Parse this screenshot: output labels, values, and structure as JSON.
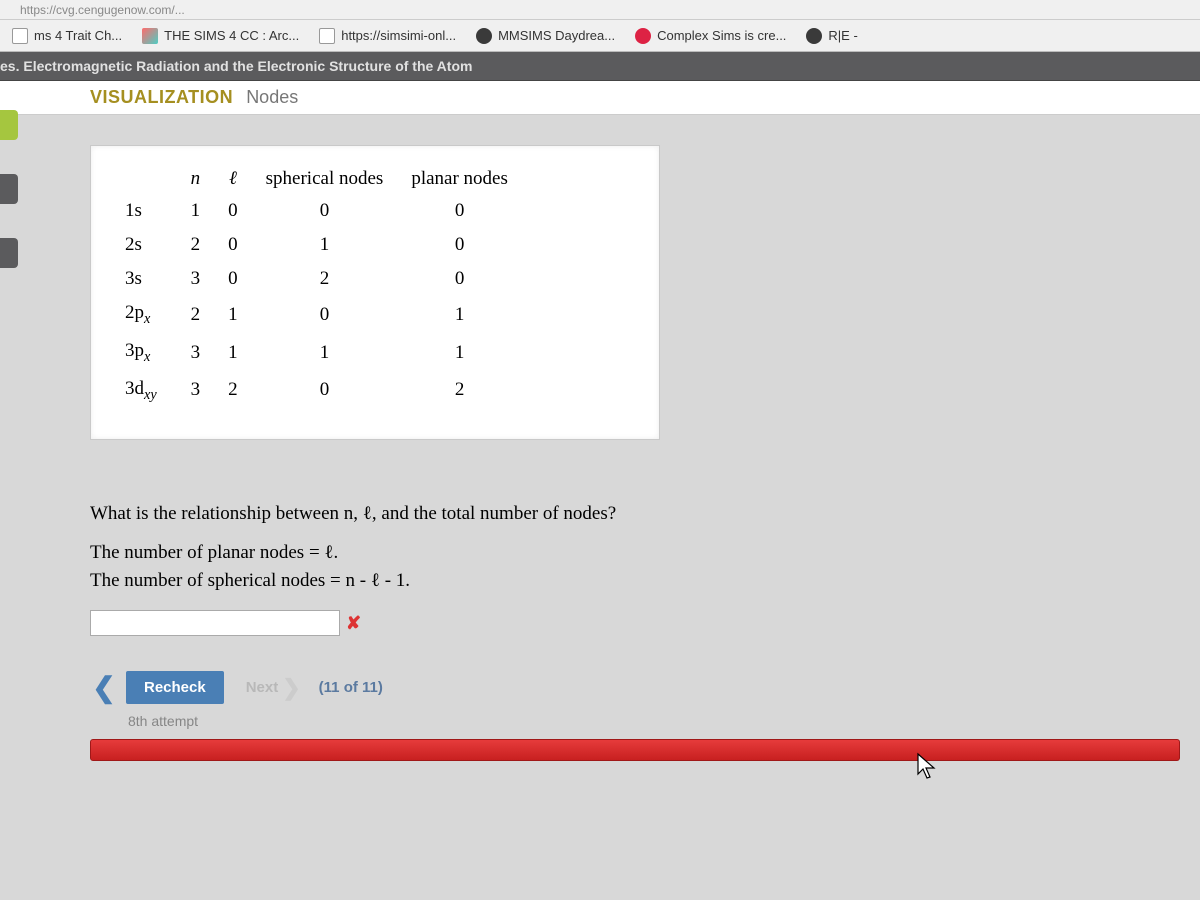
{
  "address_hint": "https://cvg.cengugenow.com/...",
  "bookmarks": [
    {
      "label": "ms 4 Trait Ch...",
      "icon": "page"
    },
    {
      "label": "THE SIMS 4 CC : Arc...",
      "icon": "colorful"
    },
    {
      "label": "https://simsimi-onl...",
      "icon": "page"
    },
    {
      "label": "MMSIMS Daydrea...",
      "icon": "darkcircle"
    },
    {
      "label": "Complex Sims is cre...",
      "icon": "redcircle"
    },
    {
      "label": "R|E -",
      "icon": "darkcircle"
    }
  ],
  "chapter_title": "es. Electromagnetic Radiation and the Electronic Structure of the Atom",
  "subheader": {
    "viz": "VISUALIZATION",
    "nodes": "Nodes"
  },
  "table": {
    "columns": [
      "",
      "n",
      "ℓ",
      "spherical nodes",
      "planar nodes"
    ],
    "rows": [
      {
        "label": "1s",
        "sub": "",
        "n": "1",
        "l": "0",
        "spherical": "0",
        "planar": "0"
      },
      {
        "label": "2s",
        "sub": "",
        "n": "2",
        "l": "0",
        "spherical": "1",
        "planar": "0"
      },
      {
        "label": "3s",
        "sub": "",
        "n": "3",
        "l": "0",
        "spherical": "2",
        "planar": "0"
      },
      {
        "label": "2p",
        "sub": "x",
        "n": "2",
        "l": "1",
        "spherical": "0",
        "planar": "1"
      },
      {
        "label": "3p",
        "sub": "x",
        "n": "3",
        "l": "1",
        "spherical": "1",
        "planar": "1"
      },
      {
        "label": "3d",
        "sub": "xy",
        "n": "3",
        "l": "2",
        "spherical": "0",
        "planar": "2"
      }
    ]
  },
  "question": {
    "line1": "What is the relationship between n, ℓ, and the total number of nodes?",
    "line2": "The number of planar nodes = ℓ.",
    "line3": "The number of spherical nodes = n - ℓ - 1."
  },
  "answer_value": "",
  "recheck_label": "Recheck",
  "next_label": "Next",
  "progress": "(11 of 11)",
  "attempt_text": "8th attempt"
}
